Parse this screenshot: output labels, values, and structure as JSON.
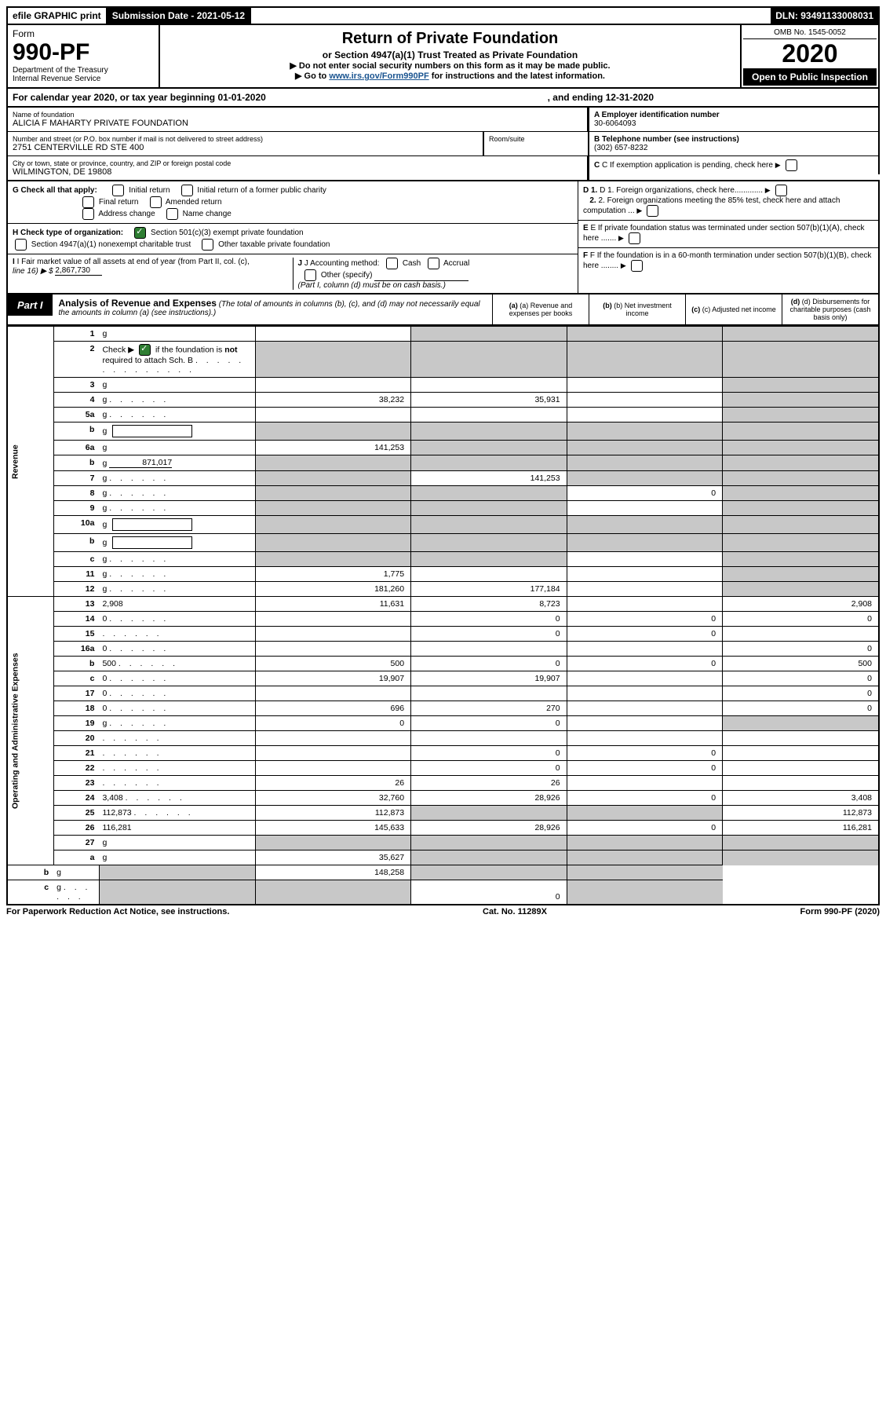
{
  "topbar": {
    "efile_label": "efile GRAPHIC print",
    "submission_label": "Submission Date - 2021-05-12",
    "dln_label": "DLN: 93491133008031"
  },
  "header": {
    "form_word": "Form",
    "form_number": "990-PF",
    "dept1": "Department of the Treasury",
    "dept2": "Internal Revenue Service",
    "title": "Return of Private Foundation",
    "subtitle": "or Section 4947(a)(1) Trust Treated as Private Foundation",
    "note1_prefix": "▶ Do not enter social security numbers on this form as it may be made public.",
    "note2_prefix": "▶ Go to ",
    "note2_link": "www.irs.gov/Form990PF",
    "note2_suffix": " for instructions and the latest information.",
    "omb": "OMB No. 1545-0052",
    "year": "2020",
    "open_public": "Open to Public Inspection"
  },
  "caly": {
    "prefix": "For calendar year 2020, or tax year beginning 01-01-2020",
    "ending": ", and ending 12-31-2020"
  },
  "info": {
    "name_lab": "Name of foundation",
    "name_val": "ALICIA F MAHARTY PRIVATE FOUNDATION",
    "addr_lab": "Number and street (or P.O. box number if mail is not delivered to street address)",
    "addr_val": "2751 CENTERVILLE RD STE 400",
    "room_lab": "Room/suite",
    "city_lab": "City or town, state or province, country, and ZIP or foreign postal code",
    "city_val": "WILMINGTON, DE  19808",
    "a_lab": "A Employer identification number",
    "a_val": "30-6064093",
    "b_lab": "B Telephone number (see instructions)",
    "b_val": "(302) 657-8232",
    "c_lab": "C If exemption application is pending, check here",
    "d1_lab": "D 1. Foreign organizations, check here.............",
    "d2_lab": "2. Foreign organizations meeting the 85% test, check here and attach computation ...",
    "e_lab": "E  If private foundation status was terminated under section 507(b)(1)(A), check here .......",
    "f_lab": "F  If the foundation is in a 60-month termination under section 507(b)(1)(B), check here ........"
  },
  "g": {
    "label": "G Check all that apply:",
    "opts": [
      "Initial return",
      "Initial return of a former public charity",
      "Final return",
      "Amended return",
      "Address change",
      "Name change"
    ]
  },
  "h": {
    "label": "H Check type of organization:",
    "o1": "Section 501(c)(3) exempt private foundation",
    "o2": "Section 4947(a)(1) nonexempt charitable trust",
    "o3": "Other taxable private foundation"
  },
  "i": {
    "label": "I Fair market value of all assets at end of year (from Part II, col. (c),",
    "line": "line 16) ▶ $",
    "val": "2,867,730"
  },
  "j": {
    "label": "J Accounting method:",
    "cash": "Cash",
    "accrual": "Accrual",
    "other": "Other (specify)",
    "note": "(Part I, column (d) must be on cash basis.)"
  },
  "part1": {
    "label": "Part I",
    "title": "Analysis of Revenue and Expenses",
    "note": " (The total of amounts in columns (b), (c), and (d) may not necessarily equal the amounts in column (a) (see instructions).)",
    "cols": {
      "a": "(a) Revenue and expenses per books",
      "b": "(b) Net investment income",
      "c": "(c) Adjusted net income",
      "d": "(d) Disbursements for charitable purposes (cash basis only)"
    }
  },
  "side": {
    "revenue": "Revenue",
    "expenses": "Operating and Administrative Expenses"
  },
  "rows": [
    {
      "n": "1",
      "d": "g",
      "a": "",
      "b": "g",
      "c": "g"
    },
    {
      "n": "2",
      "d": "g",
      "dots": true,
      "a": "g",
      "b": "g",
      "c": "g"
    },
    {
      "n": "3",
      "d": "g",
      "a": "",
      "b": "",
      "c": ""
    },
    {
      "n": "4",
      "d": "g",
      "dots": true,
      "a": "38,232",
      "b": "35,931",
      "c": ""
    },
    {
      "n": "5a",
      "d": "g",
      "dots": true,
      "a": "",
      "b": "",
      "c": ""
    },
    {
      "n": "b",
      "d": "g",
      "inline": true,
      "a": "g",
      "b": "g",
      "c": "g"
    },
    {
      "n": "6a",
      "d": "g",
      "a": "141,253",
      "b": "g",
      "c": "g"
    },
    {
      "n": "b",
      "d": "g",
      "inline_val": "871,017",
      "a": "g",
      "b": "g",
      "c": "g"
    },
    {
      "n": "7",
      "d": "g",
      "dots": true,
      "a": "g",
      "b": "141,253",
      "c": "g"
    },
    {
      "n": "8",
      "d": "g",
      "dots": true,
      "a": "g",
      "b": "g",
      "c": "0"
    },
    {
      "n": "9",
      "d": "g",
      "dots": true,
      "a": "g",
      "b": "g",
      "c": ""
    },
    {
      "n": "10a",
      "d": "g",
      "inline": true,
      "a": "g",
      "b": "g",
      "c": "g"
    },
    {
      "n": "b",
      "d": "g",
      "dots": true,
      "inline": true,
      "a": "g",
      "b": "g",
      "c": "g"
    },
    {
      "n": "c",
      "d": "g",
      "dots": true,
      "a": "g",
      "b": "g",
      "c": ""
    },
    {
      "n": "11",
      "d": "g",
      "dots": true,
      "a": "1,775",
      "b": "",
      "c": ""
    },
    {
      "n": "12",
      "d": "g",
      "dots": true,
      "a": "181,260",
      "b": "177,184",
      "c": ""
    },
    {
      "n": "13",
      "d": "2,908",
      "a": "11,631",
      "b": "8,723",
      "c": ""
    },
    {
      "n": "14",
      "d": "0",
      "dots": true,
      "a": "",
      "b": "0",
      "c": "0"
    },
    {
      "n": "15",
      "d": "",
      "dots": true,
      "a": "",
      "b": "0",
      "c": "0"
    },
    {
      "n": "16a",
      "d": "0",
      "dots": true,
      "a": "",
      "b": "",
      "c": ""
    },
    {
      "n": "b",
      "d": "500",
      "dots": true,
      "a": "500",
      "b": "0",
      "c": "0"
    },
    {
      "n": "c",
      "d": "0",
      "dots": true,
      "a": "19,907",
      "b": "19,907",
      "c": ""
    },
    {
      "n": "17",
      "d": "0",
      "dots": true,
      "a": "",
      "b": "",
      "c": ""
    },
    {
      "n": "18",
      "d": "0",
      "dots": true,
      "a": "696",
      "b": "270",
      "c": ""
    },
    {
      "n": "19",
      "d": "g",
      "dots": true,
      "a": "0",
      "b": "0",
      "c": ""
    },
    {
      "n": "20",
      "d": "",
      "dots": true,
      "a": "",
      "b": "",
      "c": ""
    },
    {
      "n": "21",
      "d": "",
      "dots": true,
      "a": "",
      "b": "0",
      "c": "0"
    },
    {
      "n": "22",
      "d": "",
      "dots": true,
      "a": "",
      "b": "0",
      "c": "0"
    },
    {
      "n": "23",
      "d": "",
      "dots": true,
      "a": "26",
      "b": "26",
      "c": ""
    },
    {
      "n": "24",
      "d": "3,408",
      "dots": true,
      "a": "32,760",
      "b": "28,926",
      "c": "0"
    },
    {
      "n": "25",
      "d": "112,873",
      "dots": true,
      "a": "112,873",
      "b": "g",
      "c": "g"
    },
    {
      "n": "26",
      "d": "116,281",
      "a": "145,633",
      "b": "28,926",
      "c": "0"
    },
    {
      "n": "27",
      "d": "g",
      "a": "g",
      "b": "g",
      "c": "g"
    },
    {
      "n": "a",
      "d": "g",
      "a": "35,627",
      "b": "g",
      "c": "g"
    },
    {
      "n": "b",
      "d": "g",
      "a": "g",
      "b": "148,258",
      "c": "g"
    },
    {
      "n": "c",
      "d": "g",
      "dots": true,
      "a": "g",
      "b": "g",
      "c": "0"
    }
  ],
  "footer": {
    "left": "For Paperwork Reduction Act Notice, see instructions.",
    "mid": "Cat. No. 11289X",
    "right": "Form 990-PF (2020)"
  },
  "colors": {
    "grey": "#c8c8c8",
    "green": "#2e7d32",
    "link": "#1a5490"
  }
}
